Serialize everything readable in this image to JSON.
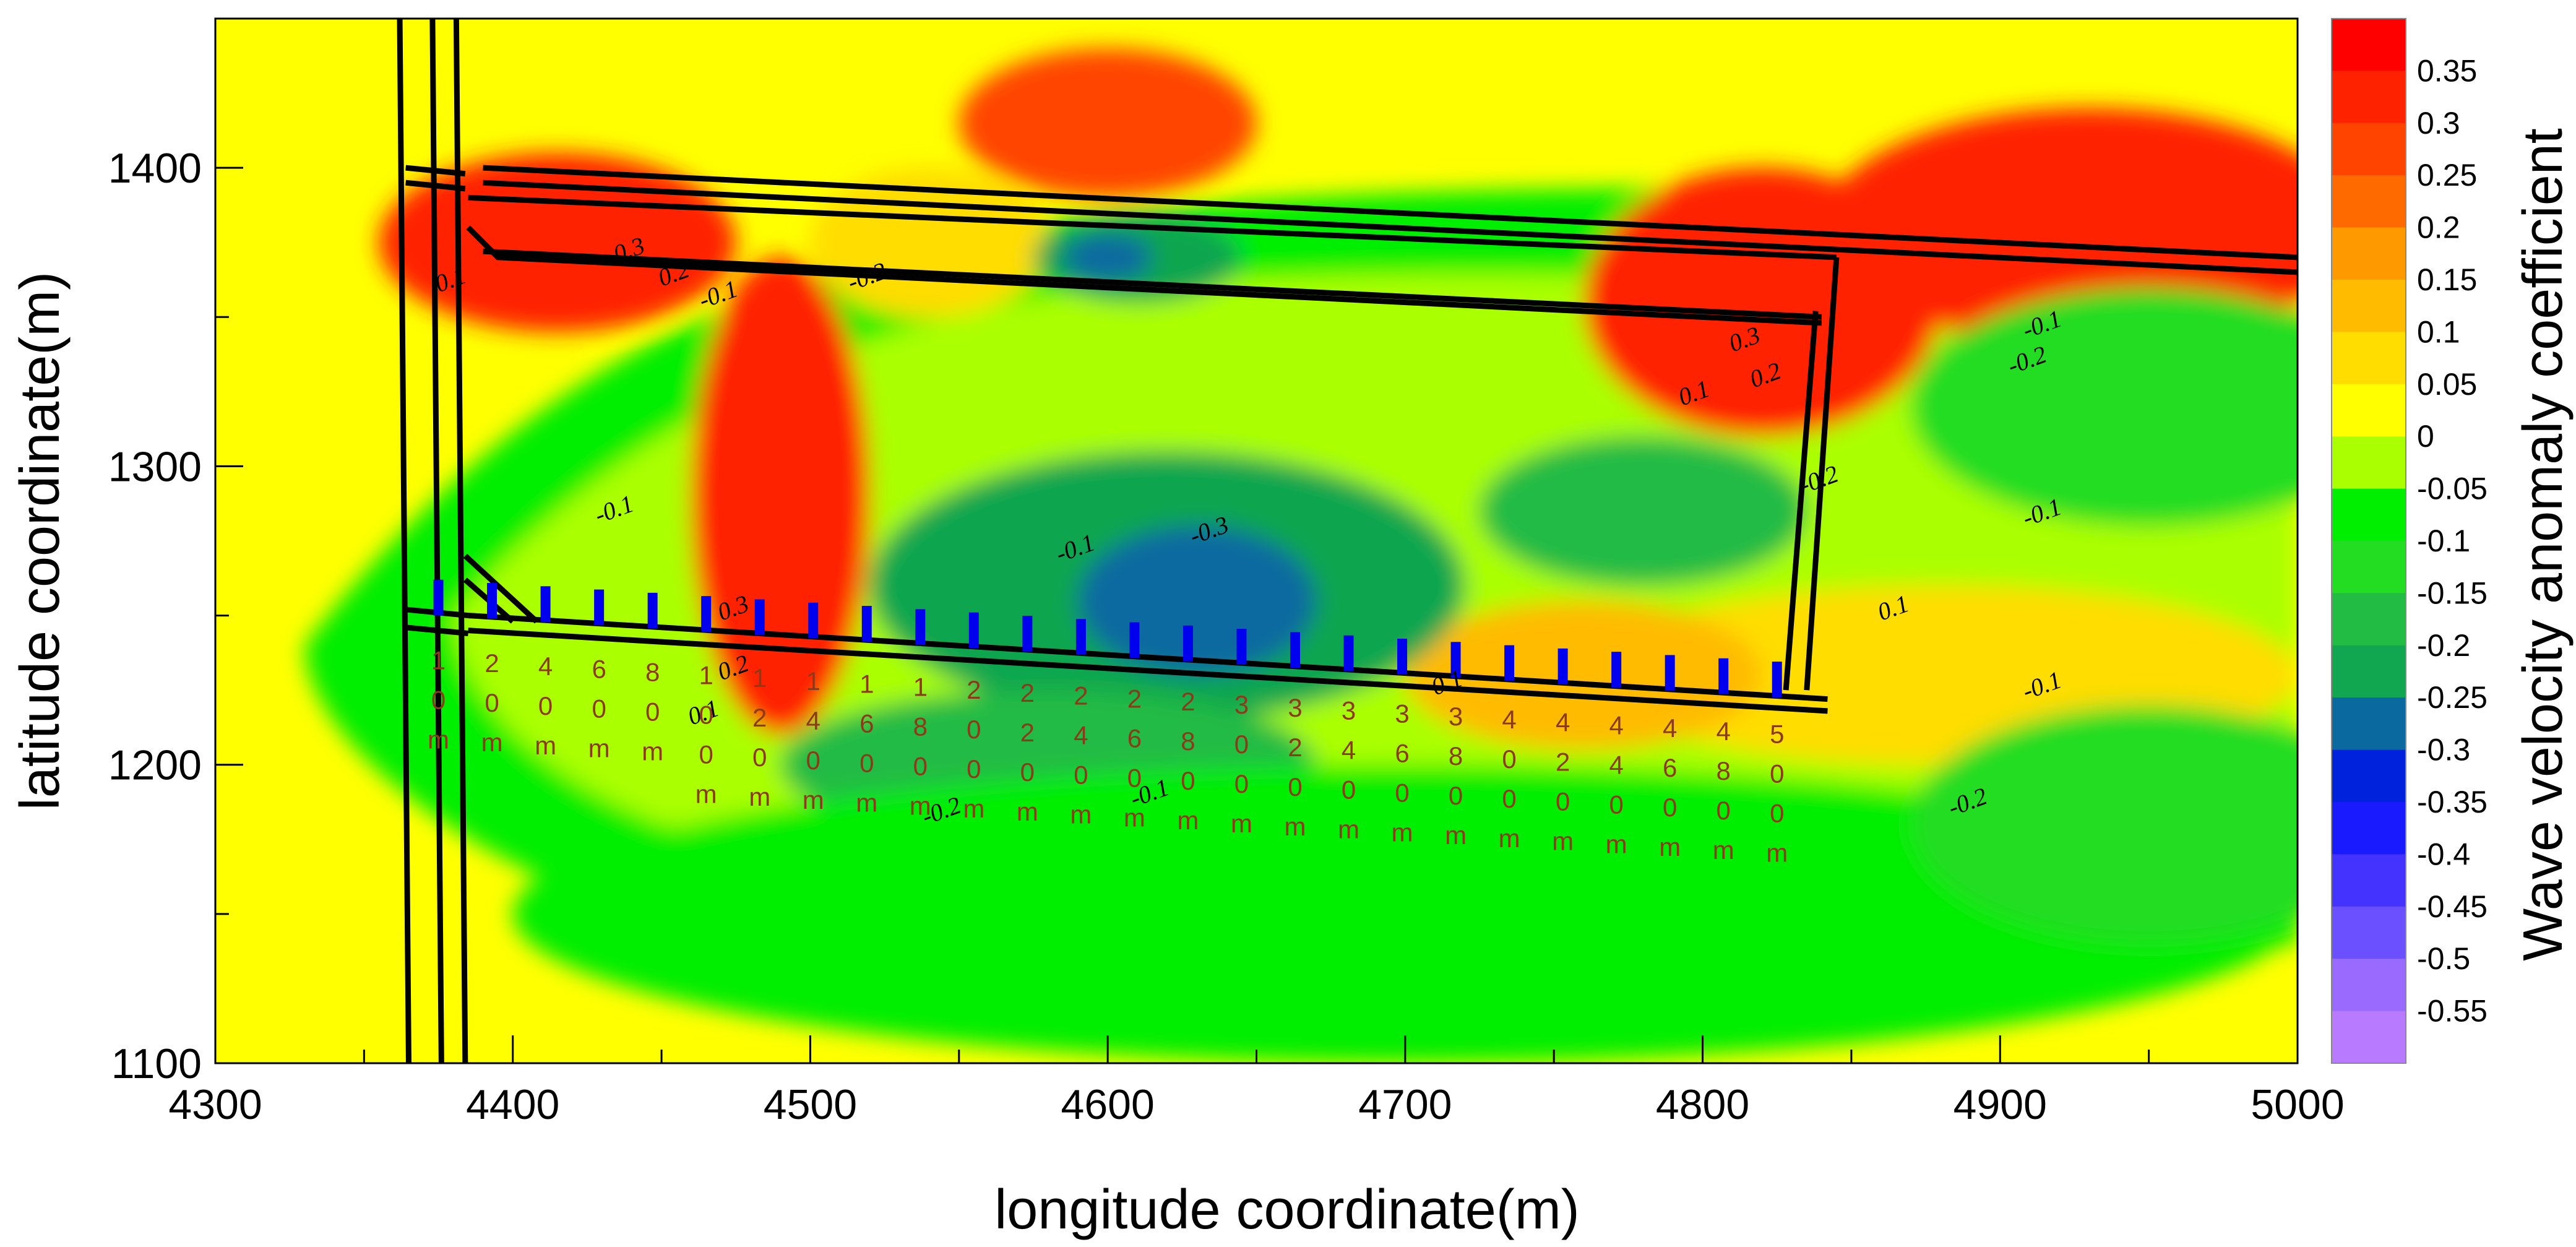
{
  "chart_data": {
    "type": "heatmap",
    "xlabel": "longitude coordinate(m)",
    "ylabel": "latitude coordinate(m)",
    "xlim": [
      4300,
      5000
    ],
    "ylim": [
      1100,
      1450
    ],
    "x_ticks": [
      4300,
      4400,
      4500,
      4600,
      4700,
      4800,
      4900,
      5000
    ],
    "y_ticks": [
      1100,
      1200,
      1300,
      1400
    ],
    "colorbar": {
      "title": "Wave velocity anomaly coefficient",
      "levels": [
        "0.35",
        "0.3",
        "0.25",
        "0.2",
        "0.15",
        "0.1",
        "0.05",
        "0",
        "-0.05",
        "-0.1",
        "-0.15",
        "-0.2",
        "-0.25",
        "-0.3",
        "-0.35",
        "-0.4",
        "-0.45",
        "-0.5",
        "-0.55"
      ],
      "colors": [
        "#ff0000",
        "#ff2200",
        "#ff4400",
        "#ff6a00",
        "#ff9900",
        "#ffbb00",
        "#ffdd00",
        "#ffff00",
        "#aaff00",
        "#00ee00",
        "#22dd22",
        "#22bb44",
        "#11a650",
        "#0a6aa0",
        "#0022dd",
        "#1a1aff",
        "#4433ff",
        "#6a50ff",
        "#9a6aff",
        "#b87aff"
      ]
    },
    "anomalies": [
      {
        "x": 4415,
        "y": 1375,
        "rx": 60,
        "ry": 30,
        "value": 0.3
      },
      {
        "x": 4490,
        "y": 1290,
        "rx": 30,
        "ry": 80,
        "value": 0.3
      },
      {
        "x": 4600,
        "y": 1415,
        "rx": 50,
        "ry": 25,
        "value": 0.25
      },
      {
        "x": 4540,
        "y": 1375,
        "rx": 40,
        "ry": 25,
        "value": 0.05
      },
      {
        "x": 4820,
        "y": 1355,
        "rx": 60,
        "ry": 45,
        "value": 0.3
      },
      {
        "x": 4930,
        "y": 1380,
        "rx": 90,
        "ry": 40,
        "value": 0.3
      },
      {
        "x": 4880,
        "y": 1230,
        "rx": 120,
        "ry": 30,
        "value": 0.05
      },
      {
        "x": 4760,
        "y": 1230,
        "rx": 60,
        "ry": 25,
        "value": 0.1
      },
      {
        "x": 4620,
        "y": 1260,
        "rx": 100,
        "ry": 45,
        "value": -0.25
      },
      {
        "x": 4630,
        "y": 1255,
        "rx": 40,
        "ry": 25,
        "value": -0.3
      },
      {
        "x": 4610,
        "y": 1370,
        "rx": 35,
        "ry": 15,
        "value": -0.25
      },
      {
        "x": 4600,
        "y": 1370,
        "rx": 15,
        "ry": 8,
        "value": -0.3
      },
      {
        "x": 4580,
        "y": 1200,
        "rx": 90,
        "ry": 25,
        "value": -0.2
      },
      {
        "x": 4780,
        "y": 1285,
        "rx": 55,
        "ry": 25,
        "value": -0.2
      },
      {
        "x": 4700,
        "y": 1150,
        "rx": 300,
        "ry": 50,
        "value": -0.1
      },
      {
        "x": 4950,
        "y": 1320,
        "rx": 80,
        "ry": 40,
        "value": -0.15
      },
      {
        "x": 4950,
        "y": 1180,
        "rx": 80,
        "ry": 40,
        "value": -0.15
      }
    ],
    "contour_labels": [
      {
        "text": "0.1",
        "x": 4380,
        "y": 1360
      },
      {
        "text": "0.3",
        "x": 4440,
        "y": 1370
      },
      {
        "text": "0.2",
        "x": 4455,
        "y": 1362
      },
      {
        "text": "-0.1",
        "x": 4470,
        "y": 1355
      },
      {
        "text": "-0.2",
        "x": 4520,
        "y": 1361
      },
      {
        "text": "-0.1",
        "x": 4435,
        "y": 1283
      },
      {
        "text": "0.3",
        "x": 4475,
        "y": 1250
      },
      {
        "text": "0.2",
        "x": 4475,
        "y": 1230
      },
      {
        "text": "0.1",
        "x": 4465,
        "y": 1215
      },
      {
        "text": "-0.1",
        "x": 4590,
        "y": 1270
      },
      {
        "text": "-0.3",
        "x": 4635,
        "y": 1276
      },
      {
        "text": "-0.2",
        "x": 4545,
        "y": 1182
      },
      {
        "text": "-0.1",
        "x": 4615,
        "y": 1188
      },
      {
        "text": "0.1",
        "x": 4715,
        "y": 1225
      },
      {
        "text": "0.3",
        "x": 4815,
        "y": 1340
      },
      {
        "text": "0.2",
        "x": 4822,
        "y": 1328
      },
      {
        "text": "0.1",
        "x": 4798,
        "y": 1322
      },
      {
        "text": "-0.2",
        "x": 4840,
        "y": 1293
      },
      {
        "text": "0.1",
        "x": 4865,
        "y": 1250
      },
      {
        "text": "-0.1",
        "x": 4915,
        "y": 1345
      },
      {
        "text": "-0.2",
        "x": 4910,
        "y": 1333
      },
      {
        "text": "-0.1",
        "x": 4915,
        "y": 1282
      },
      {
        "text": "-0.1",
        "x": 4915,
        "y": 1224
      },
      {
        "text": "-0.2",
        "x": 4890,
        "y": 1185
      }
    ],
    "distance_labels": [
      "10m",
      "20m",
      "40m",
      "60m",
      "80m",
      "100m",
      "120m",
      "140m",
      "160m",
      "180m",
      "200m",
      "220m",
      "240m",
      "260m",
      "280m",
      "300m",
      "320m",
      "340m",
      "360m",
      "380m",
      "400m",
      "420m",
      "440m",
      "460m",
      "480m",
      "500m"
    ],
    "station_x": [
      4375,
      4393,
      4411,
      4429,
      4447,
      4465,
      4483,
      4501,
      4519,
      4537,
      4555,
      4573,
      4591,
      4609,
      4627,
      4645,
      4663,
      4681,
      4699,
      4717,
      4735,
      4753,
      4771,
      4789,
      4807,
      4825
    ]
  }
}
